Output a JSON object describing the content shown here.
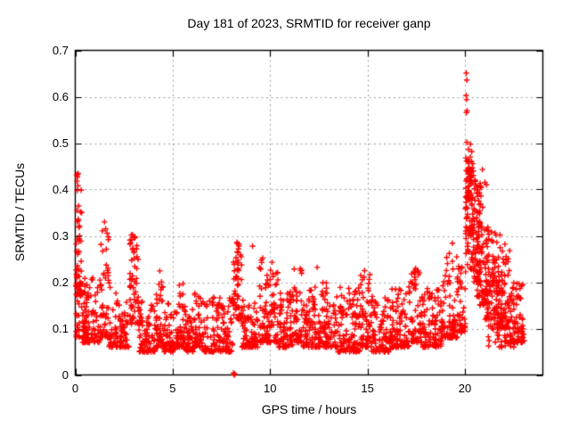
{
  "figure": {
    "title": "Day 181 of 2023, SRMTID for receiver ganp",
    "xlabel": "GPS time / hours",
    "ylabel": "SRMTID / TECUs"
  },
  "colors": {
    "marker": "#ff0000",
    "grid": "#9e9e9e",
    "border": "#000000",
    "background": "#ffffff",
    "text": "#000000"
  },
  "chart_data": {
    "type": "scatter",
    "title": "Day 181 of 2023, SRMTID for receiver ganp",
    "xlabel": "GPS time / hours",
    "ylabel": "SRMTID / TECUs",
    "xlim": [
      0,
      24
    ],
    "ylim": [
      0,
      0.7
    ],
    "xticks": [
      0,
      5,
      10,
      15,
      20
    ],
    "xtick_labels": [
      "0",
      "5",
      "10",
      "15",
      "20"
    ],
    "yticks": [
      0,
      0.1,
      0.2,
      0.3,
      0.4,
      0.5,
      0.6,
      0.7
    ],
    "ytick_labels": [
      "0",
      "0.1",
      "0.2",
      "0.3",
      "0.4",
      "0.5",
      "0.6",
      "0.7"
    ],
    "grid": true,
    "grid_style": "dotted",
    "legend": "none",
    "marker": "plus",
    "marker_size": 7,
    "marker_color": "#ff0000",
    "seed": 20230181,
    "band_segments": [
      [
        0.03,
        0.33,
        55,
        0.17,
        0.44,
        1.8
      ],
      [
        0.03,
        0.6,
        45,
        0.08,
        0.2,
        1.6
      ],
      [
        0.35,
        1.3,
        90,
        0.07,
        0.21,
        2.0
      ],
      [
        1.3,
        1.75,
        50,
        0.08,
        0.33,
        1.8
      ],
      [
        1.75,
        2.75,
        90,
        0.06,
        0.19,
        2.1
      ],
      [
        2.8,
        3.25,
        55,
        0.11,
        0.305,
        1.3
      ],
      [
        3.25,
        4.1,
        80,
        0.05,
        0.16,
        2.0
      ],
      [
        4.1,
        4.5,
        45,
        0.06,
        0.23,
        2.1
      ],
      [
        4.5,
        5.1,
        60,
        0.05,
        0.155,
        2.0
      ],
      [
        5.1,
        5.55,
        45,
        0.06,
        0.2,
        2.1
      ],
      [
        5.55,
        6.1,
        55,
        0.05,
        0.15,
        2.0
      ],
      [
        6.1,
        6.55,
        45,
        0.06,
        0.19,
        2.0
      ],
      [
        6.55,
        8.08,
        140,
        0.05,
        0.17,
        2.2
      ],
      [
        8.1,
        8.55,
        55,
        0.12,
        0.29,
        1.5
      ],
      [
        8.55,
        9.45,
        85,
        0.06,
        0.17,
        2.1
      ],
      [
        9.45,
        10.45,
        100,
        0.07,
        0.25,
        2.2
      ],
      [
        10.45,
        11.2,
        75,
        0.06,
        0.18,
        2.1
      ],
      [
        11.2,
        11.65,
        45,
        0.07,
        0.23,
        2.1
      ],
      [
        11.65,
        12.65,
        95,
        0.06,
        0.19,
        2.1
      ],
      [
        12.65,
        13.45,
        80,
        0.06,
        0.2,
        2.1
      ],
      [
        13.45,
        14.6,
        110,
        0.05,
        0.19,
        2.2
      ],
      [
        14.6,
        15.15,
        55,
        0.06,
        0.22,
        2.1
      ],
      [
        15.15,
        16.2,
        100,
        0.05,
        0.17,
        2.1
      ],
      [
        16.2,
        17.2,
        95,
        0.06,
        0.19,
        2.1
      ],
      [
        17.2,
        17.8,
        60,
        0.07,
        0.23,
        2.1
      ],
      [
        17.8,
        18.8,
        95,
        0.06,
        0.19,
        2.1
      ],
      [
        18.8,
        19.6,
        80,
        0.08,
        0.27,
        2.2
      ],
      [
        19.6,
        20.02,
        45,
        0.09,
        0.24,
        1.7
      ],
      [
        20.02,
        20.4,
        55,
        0.22,
        0.5,
        1.1
      ],
      [
        20.05,
        20.45,
        45,
        0.3,
        0.47,
        1.1
      ],
      [
        20.35,
        20.8,
        70,
        0.2,
        0.44,
        1.5
      ],
      [
        20.6,
        21.15,
        80,
        0.15,
        0.42,
        1.7
      ],
      [
        21.0,
        21.65,
        80,
        0.12,
        0.32,
        1.7
      ],
      [
        21.6,
        22.3,
        90,
        0.1,
        0.28,
        1.7
      ],
      [
        22.3,
        23.05,
        80,
        0.07,
        0.2,
        1.8
      ],
      [
        21.2,
        22.6,
        40,
        0.06,
        0.12,
        1.4
      ]
    ],
    "outlier_points": [
      [
        0.07,
        0.432
      ],
      [
        0.11,
        0.427
      ],
      [
        0.09,
        0.418
      ],
      [
        0.14,
        0.408
      ],
      [
        0.1,
        0.398
      ],
      [
        1.5,
        0.33
      ],
      [
        1.56,
        0.315
      ],
      [
        2.95,
        0.302
      ],
      [
        3.06,
        0.296
      ],
      [
        8.3,
        0.286
      ],
      [
        8.38,
        0.272
      ],
      [
        9.1,
        0.278
      ],
      [
        9.62,
        0.252
      ],
      [
        10.1,
        0.243
      ],
      [
        12.42,
        0.232
      ],
      [
        14.85,
        0.225
      ],
      [
        17.55,
        0.225
      ],
      [
        19.36,
        0.284
      ],
      [
        19.2,
        0.262
      ],
      [
        20.07,
        0.651
      ],
      [
        20.1,
        0.636
      ],
      [
        20.06,
        0.603
      ],
      [
        20.09,
        0.594
      ],
      [
        20.11,
        0.57
      ],
      [
        20.08,
        0.566
      ],
      [
        20.1,
        0.502
      ],
      [
        20.05,
        0.468
      ],
      [
        20.14,
        0.462
      ],
      [
        20.18,
        0.447
      ],
      [
        20.9,
        0.443
      ],
      [
        21.1,
        0.41
      ],
      [
        21.8,
        0.302
      ],
      [
        22.05,
        0.282
      ],
      [
        8.12,
        0.004
      ],
      [
        8.15,
        0.0
      ],
      [
        8.19,
        0.002
      ]
    ]
  }
}
